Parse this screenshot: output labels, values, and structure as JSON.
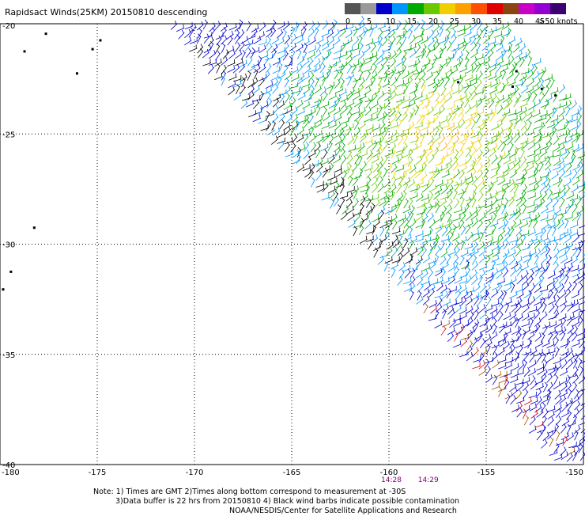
{
  "header": {
    "title": "Rapidsact Winds(25KM) 20150810 descending"
  },
  "colorbar": {
    "swatches": [
      "#555555",
      "#9a9a9a",
      "#0000cd",
      "#0096ff",
      "#00aa00",
      "#6ac800",
      "#f0d000",
      "#ffa000",
      "#ff5000",
      "#e00000",
      "#8b4513",
      "#c800c8",
      "#9400d3",
      "#3c0070"
    ],
    "labels": [
      "0",
      "5",
      "10",
      "15",
      "20",
      "25",
      "30",
      "35",
      "40",
      "45",
      ">50 knots"
    ]
  },
  "chart_data": {
    "type": "scatter",
    "title": "Rapidsact Winds(25KM) 20150810 descending",
    "xlim": [
      -180,
      -150
    ],
    "ylim": [
      -40,
      -20
    ],
    "x_ticks": [
      "-180",
      "-175",
      "-170",
      "-165",
      "-160",
      "-155",
      "-150"
    ],
    "y_ticks": [
      "-20",
      "-25",
      "-30",
      "-35",
      "-40"
    ],
    "grid": true,
    "legend": "top-right",
    "swath": {
      "top_edge_lon": -171.5,
      "top_edge_lat": -20,
      "bottom_edge_lon": -151.3,
      "bottom_edge_lat": -40,
      "width_deg_lon": 17
    },
    "wind_speed_knots_range": [
      0,
      50
    ],
    "times": [
      "14:28",
      "14:29"
    ],
    "regions": [
      {
        "name": "high-wind core",
        "lon": -157.5,
        "lat": -25.5,
        "speed_knots": 28
      },
      {
        "name": "southern edge",
        "lon": -154,
        "lat": -38,
        "speed_knots": 18
      }
    ]
  },
  "notes": {
    "line1": "Note: 1) Times are GMT 2)Times along bottom correspond to measurement at -30S",
    "line2": "3)Data buffer is 22 hrs from 20150810 4) Black wind barbs indicate possible contamination",
    "line3": "NOAA/NESDIS/Center for Satellite Applications and Research"
  }
}
